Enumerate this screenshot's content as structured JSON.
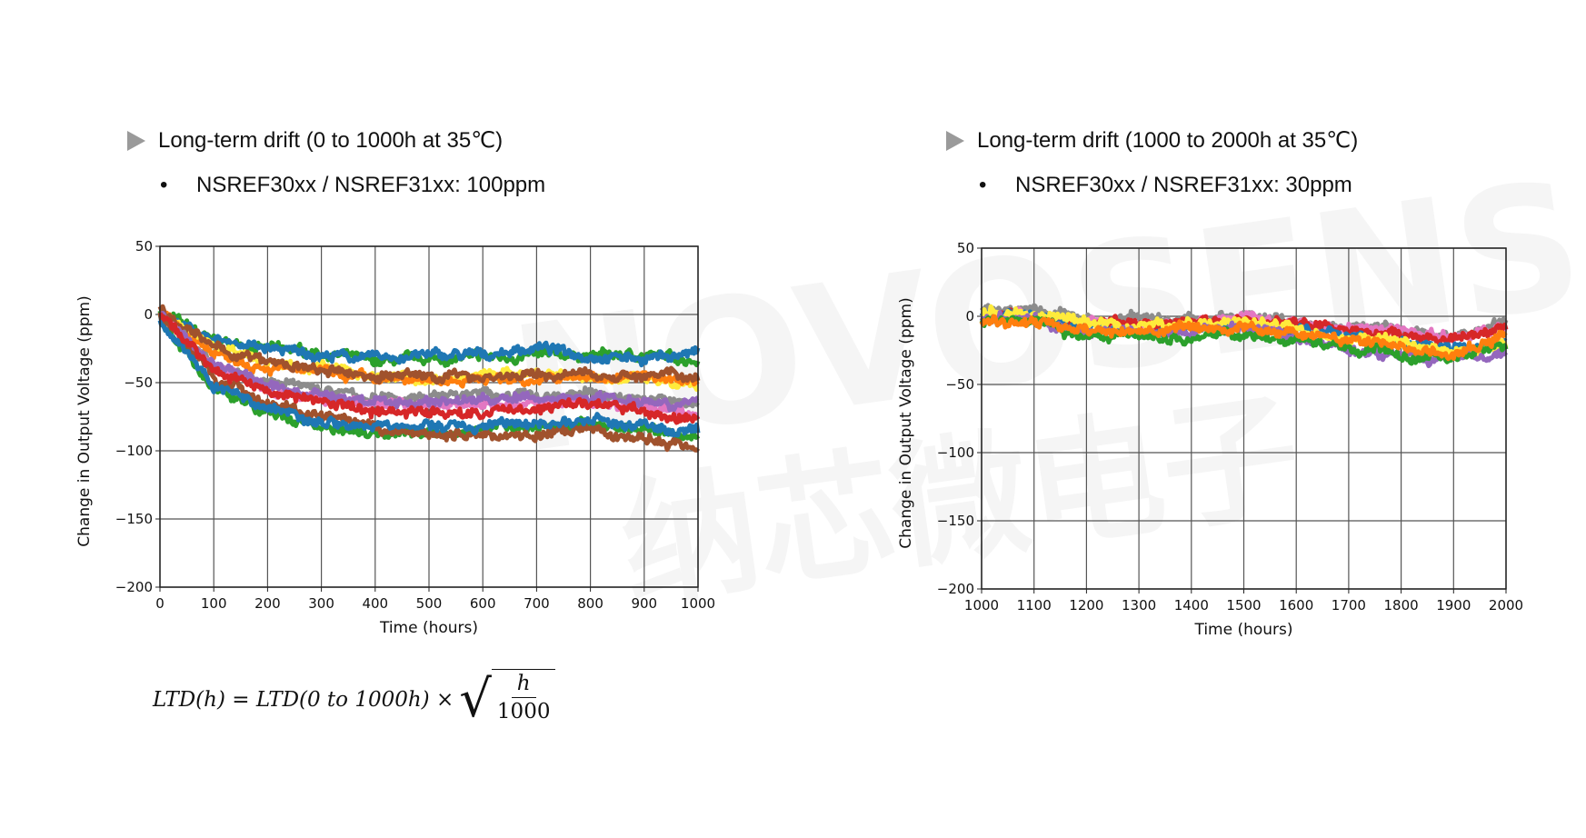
{
  "watermark": {
    "brand": "NOVOSENSE",
    "cn": "纳芯微电子"
  },
  "left": {
    "heading": "Long-term drift (0 to 1000h at 35℃)",
    "bullet": "NSREF30xx / NSREF31xx: 100ppm"
  },
  "right": {
    "heading": "Long-term drift (1000 to 2000h at 35℃)",
    "bullet": "NSREF30xx / NSREF31xx: 30ppm"
  },
  "formula": {
    "lhs": "LTD(h) = LTD(0 to 1000h) ×",
    "numerator": "h",
    "denominator": "1000"
  },
  "chart_data": [
    {
      "type": "line",
      "xlabel": "Time (hours)",
      "ylabel": "Change in Output Voltage (ppm)",
      "xlim": [
        0,
        1000
      ],
      "ylim": [
        -200,
        50
      ],
      "xticks": [
        0,
        100,
        200,
        300,
        400,
        500,
        600,
        700,
        800,
        900,
        1000
      ],
      "yticks": [
        50,
        0,
        -50,
        -100,
        -150,
        -200
      ],
      "grid": true,
      "x": [
        0,
        100,
        200,
        300,
        400,
        500,
        600,
        700,
        800,
        900,
        1000
      ],
      "series": [
        {
          "color": "#2ca02c",
          "values": [
            2,
            -20,
            -25,
            -28,
            -35,
            -33,
            -32,
            -30,
            -30,
            -30,
            -33
          ]
        },
        {
          "color": "#1f77b4",
          "values": [
            0,
            -18,
            -25,
            -30,
            -32,
            -30,
            -30,
            -24,
            -30,
            -32,
            -28
          ]
        },
        {
          "color": "#ffeb3b",
          "values": [
            0,
            -25,
            -35,
            -40,
            -45,
            -48,
            -45,
            -42,
            -45,
            -48,
            -55
          ]
        },
        {
          "color": "#ff7f0e",
          "values": [
            0,
            -28,
            -38,
            -43,
            -48,
            -48,
            -47,
            -48,
            -46,
            -46,
            -48
          ]
        },
        {
          "color": "#a0522d",
          "values": [
            5,
            -25,
            -35,
            -42,
            -45,
            -45,
            -45,
            -45,
            -44,
            -45,
            -45
          ]
        },
        {
          "color": "#8c8c8c",
          "values": [
            0,
            -35,
            -50,
            -55,
            -62,
            -60,
            -58,
            -60,
            -58,
            -62,
            -65
          ]
        },
        {
          "color": "#e377c2",
          "values": [
            0,
            -38,
            -55,
            -62,
            -65,
            -68,
            -68,
            -66,
            -65,
            -68,
            -72
          ]
        },
        {
          "color": "#9467bd",
          "values": [
            0,
            -36,
            -52,
            -60,
            -64,
            -64,
            -62,
            -62,
            -60,
            -62,
            -66
          ]
        },
        {
          "color": "#2ca02c",
          "values": [
            -3,
            -55,
            -72,
            -82,
            -86,
            -86,
            -84,
            -82,
            -80,
            -84,
            -90
          ]
        },
        {
          "color": "#a0522d",
          "values": [
            0,
            -45,
            -65,
            -75,
            -85,
            -88,
            -88,
            -88,
            -85,
            -92,
            -97
          ]
        },
        {
          "color": "#1f77b4",
          "values": [
            -3,
            -52,
            -68,
            -78,
            -82,
            -82,
            -82,
            -80,
            -78,
            -82,
            -88
          ]
        },
        {
          "color": "#d62728",
          "values": [
            0,
            -40,
            -55,
            -65,
            -70,
            -72,
            -72,
            -68,
            -65,
            -72,
            -78
          ]
        }
      ]
    },
    {
      "type": "line",
      "xlabel": "Time (hours)",
      "ylabel": "Change in Output Voltage (ppm)",
      "xlim": [
        1000,
        2000
      ],
      "ylim": [
        -200,
        50
      ],
      "xticks": [
        1000,
        1100,
        1200,
        1300,
        1400,
        1500,
        1600,
        1700,
        1800,
        1900,
        2000
      ],
      "yticks": [
        50,
        0,
        -50,
        -100,
        -150,
        -200
      ],
      "grid": true,
      "x": [
        1000,
        1100,
        1200,
        1300,
        1400,
        1500,
        1600,
        1700,
        1800,
        1900,
        2000
      ],
      "series": [
        {
          "color": "#8c8c8c",
          "values": [
            5,
            5,
            -3,
            -1,
            -3,
            0,
            -3,
            -8,
            -10,
            -15,
            -3
          ]
        },
        {
          "color": "#e377c2",
          "values": [
            0,
            2,
            -5,
            -8,
            -5,
            2,
            -5,
            -8,
            -10,
            -16,
            -8
          ]
        },
        {
          "color": "#d62728",
          "values": [
            0,
            0,
            -5,
            -5,
            -5,
            -5,
            -5,
            -10,
            -14,
            -18,
            -8
          ]
        },
        {
          "color": "#1f77b4",
          "values": [
            2,
            0,
            -8,
            -10,
            -8,
            -8,
            -10,
            -15,
            -20,
            -25,
            -18
          ]
        },
        {
          "color": "#ffeb3b",
          "values": [
            3,
            0,
            -5,
            -8,
            -5,
            -5,
            -10,
            -15,
            -20,
            -28,
            -20
          ]
        },
        {
          "color": "#9467bd",
          "values": [
            -2,
            -2,
            -10,
            -12,
            -10,
            -10,
            -15,
            -25,
            -30,
            -32,
            -28
          ]
        },
        {
          "color": "#2ca02c",
          "values": [
            -3,
            -3,
            -15,
            -15,
            -15,
            -12,
            -18,
            -25,
            -28,
            -30,
            -22
          ]
        },
        {
          "color": "#ff7f0e",
          "values": [
            -5,
            -5,
            -12,
            -12,
            -10,
            -8,
            -12,
            -18,
            -22,
            -28,
            -15
          ]
        }
      ]
    }
  ]
}
